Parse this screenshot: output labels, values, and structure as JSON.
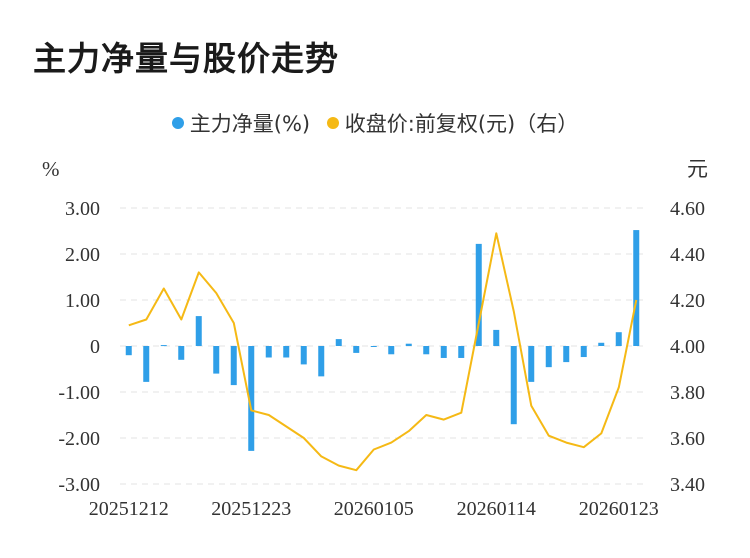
{
  "title": "主力净量与股价走势",
  "legend": [
    {
      "label": "主力净量(%)",
      "color": "#2f9fe8"
    },
    {
      "label": "收盘价:前复权(元)（右）",
      "color": "#f5b915"
    }
  ],
  "chart_data": {
    "type": "bar+line",
    "title": "主力净量与股价走势",
    "left_axis": {
      "unit": "%",
      "min": -3,
      "max": 3,
      "ticks": [
        "3.00",
        "2.00",
        "1.00",
        "0",
        "-1.00",
        "-2.00",
        "-3.00"
      ]
    },
    "right_axis": {
      "unit": "元",
      "min": 3.4,
      "max": 4.6,
      "ticks": [
        "4.60",
        "4.40",
        "4.20",
        "4.00",
        "3.80",
        "3.60",
        "3.40"
      ]
    },
    "x_tick_labels": [
      "20251212",
      "20251223",
      "20260105",
      "20260114",
      "20260123"
    ],
    "grid": true,
    "legend_position": "top",
    "series": [
      {
        "name": "主力净量(%)",
        "type": "bar",
        "color": "#2f9fe8",
        "values": [
          -0.2,
          -0.78,
          0.02,
          -0.3,
          0.65,
          -0.6,
          -0.85,
          -2.28,
          -0.25,
          -0.25,
          -0.4,
          -0.66,
          0.15,
          -0.15,
          0.0,
          -0.18,
          0.05,
          -0.18,
          -0.26,
          -0.26,
          2.22,
          0.35,
          -1.7,
          -0.78,
          -0.46,
          -0.35,
          -0.24,
          0.07,
          0.3,
          2.52
        ]
      },
      {
        "name": "收盘价:前复权(元)（右）",
        "type": "line",
        "color": "#f5b915",
        "values": [
          4.09,
          4.115,
          4.25,
          4.115,
          4.32,
          4.23,
          4.1,
          3.72,
          3.7,
          3.65,
          3.6,
          3.52,
          3.48,
          3.46,
          3.55,
          3.58,
          3.63,
          3.7,
          3.68,
          3.71,
          4.1,
          4.49,
          4.15,
          3.74,
          3.61,
          3.58,
          3.56,
          3.62,
          3.82,
          4.2
        ]
      }
    ]
  }
}
